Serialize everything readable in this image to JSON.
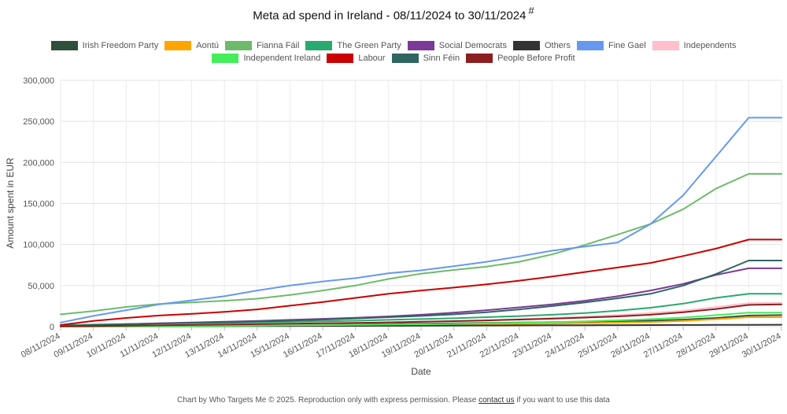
{
  "chart_data": {
    "type": "line",
    "title": "Meta ad spend in Ireland - 08/11/2024 to 30/11/2024",
    "title_mark": "#",
    "xlabel": "Date",
    "ylabel": "Amount spent in EUR",
    "ylim": [
      0,
      300000
    ],
    "y_ticks": [
      "0",
      "50,000",
      "100,000",
      "150,000",
      "200,000",
      "250,000",
      "300,000"
    ],
    "y_tick_values": [
      0,
      50000,
      100000,
      150000,
      200000,
      250000,
      300000
    ],
    "grid": true,
    "legend_position": "top",
    "x": [
      "08/11/2024",
      "09/11/2024",
      "10/11/2024",
      "11/11/2024",
      "12/11/2024",
      "13/11/2024",
      "14/11/2024",
      "15/11/2024",
      "16/11/2024",
      "17/11/2024",
      "18/11/2024",
      "19/11/2024",
      "20/11/2024",
      "21/11/2024",
      "22/11/2024",
      "23/11/2024",
      "24/11/2024",
      "25/11/2024",
      "26/11/2024",
      "27/11/2024",
      "28/11/2024",
      "29/11/2024",
      "30/11/2024"
    ],
    "series": [
      {
        "name": "Irish Freedom Party",
        "color": "#2f4f3a",
        "values": [
          500,
          800,
          1000,
          1200,
          1500,
          1800,
          2000,
          2300,
          2600,
          2900,
          3200,
          3600,
          4000,
          4500,
          5000,
          5500,
          6000,
          6600,
          7200,
          8500,
          10500,
          13500,
          14000
        ]
      },
      {
        "name": "Aontú",
        "color": "#ffa500",
        "values": [
          200,
          400,
          600,
          800,
          1000,
          1200,
          1400,
          1600,
          1800,
          2000,
          2200,
          2400,
          2700,
          3000,
          3400,
          3800,
          4300,
          4900,
          5600,
          7000,
          9000,
          11500,
          11500
        ]
      },
      {
        "name": "Fianna Fáil",
        "color": "#6dbb6a",
        "values": [
          15000,
          19000,
          24000,
          27500,
          29500,
          31500,
          34000,
          38500,
          44000,
          50000,
          58000,
          64500,
          69000,
          73000,
          79000,
          88000,
          99500,
          112000,
          125000,
          143000,
          168000,
          186000,
          186000
        ]
      },
      {
        "name": "The Green Party",
        "color": "#2aaa6e",
        "values": [
          1500,
          2500,
          3200,
          3800,
          4200,
          4700,
          5200,
          5800,
          6500,
          7200,
          8200,
          9200,
          10200,
          11500,
          12800,
          14500,
          16500,
          19500,
          23000,
          28000,
          35000,
          40000,
          40000
        ]
      },
      {
        "name": "Social Democrats",
        "color": "#7a3a95",
        "values": [
          800,
          1800,
          3000,
          4000,
          5000,
          6000,
          7000,
          8200,
          9500,
          10800,
          12500,
          14500,
          17000,
          20000,
          23500,
          27000,
          31500,
          37000,
          44000,
          52000,
          63000,
          71000,
          71000
        ]
      },
      {
        "name": "Others",
        "color": "#333333",
        "values": [
          100,
          200,
          300,
          400,
          500,
          600,
          700,
          800,
          900,
          1000,
          1100,
          1200,
          1300,
          1400,
          1500,
          1600,
          1700,
          1800,
          1900,
          2000,
          2100,
          2200,
          2300
        ]
      },
      {
        "name": "Fine Gael",
        "color": "#6699ee",
        "values": [
          5000,
          13000,
          20000,
          27000,
          32000,
          37000,
          44000,
          50000,
          55000,
          59000,
          65000,
          68500,
          73500,
          79000,
          85500,
          92500,
          97500,
          102500,
          125000,
          160000,
          207000,
          254500,
          254500
        ]
      },
      {
        "name": "Independents",
        "color": "#ffc0cb",
        "values": [
          300,
          600,
          1000,
          1400,
          1800,
          2200,
          2700,
          3200,
          3800,
          4400,
          5100,
          5900,
          6800,
          7900,
          9100,
          10500,
          12200,
          14200,
          16500,
          19500,
          24000,
          28500,
          29000
        ]
      },
      {
        "name": "Independent Ireland",
        "color": "#44ee5a",
        "values": [
          100,
          200,
          400,
          600,
          800,
          1000,
          1200,
          1500,
          1800,
          2100,
          2500,
          2900,
          3400,
          4000,
          4700,
          5500,
          6500,
          7700,
          9100,
          11000,
          14000,
          17000,
          17000
        ]
      },
      {
        "name": "Labour",
        "color": "#cc0000",
        "values": [
          2000,
          7000,
          10500,
          13500,
          15500,
          18000,
          21000,
          25500,
          30000,
          35000,
          40000,
          44000,
          47500,
          51500,
          56000,
          61000,
          66500,
          72000,
          77500,
          86000,
          95000,
          106000,
          106000
        ]
      },
      {
        "name": "Sinn Féin",
        "color": "#2e6660",
        "values": [
          1000,
          2000,
          3000,
          3800,
          4500,
          5300,
          6200,
          7300,
          8500,
          10000,
          11500,
          13000,
          15000,
          17500,
          21000,
          25000,
          29500,
          34500,
          40000,
          50000,
          64000,
          80500,
          80500
        ]
      },
      {
        "name": "People Before Profit",
        "color": "#8b1f1f",
        "values": [
          400,
          800,
          1200,
          1600,
          2000,
          2500,
          3000,
          3500,
          4000,
          4600,
          5200,
          5900,
          6700,
          7600,
          8600,
          9700,
          11000,
          12500,
          14500,
          17500,
          21500,
          26500,
          27000
        ]
      }
    ]
  },
  "footer": {
    "text_before": "Chart by Who Targets Me © 2025. Reproduction only with express permission. Please ",
    "link_text": "contact us",
    "text_after": " if you want to use this data"
  }
}
